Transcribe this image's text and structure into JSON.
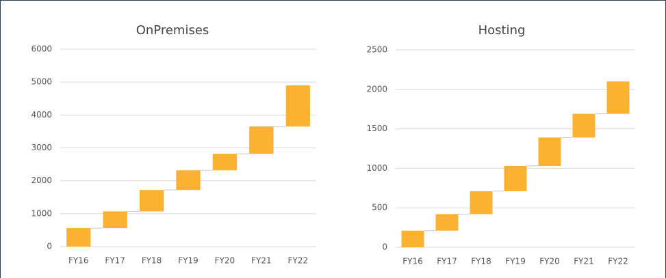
{
  "chart_data": [
    {
      "type": "waterfall",
      "title": "OnPremises",
      "categories": [
        "FY16",
        "FY17",
        "FY18",
        "FY19",
        "FY20",
        "FY21",
        "FY22"
      ],
      "values": [
        560,
        510,
        650,
        600,
        500,
        830,
        1250
      ],
      "color": "#fcb131",
      "ylim": [
        0,
        6000
      ],
      "yticks": [
        0,
        1000,
        2000,
        3000,
        4000,
        5000,
        6000
      ],
      "grid": true
    },
    {
      "type": "waterfall",
      "title": "Hosting",
      "categories": [
        "FY16",
        "FY17",
        "FY18",
        "FY19",
        "FY20",
        "FY21",
        "FY22"
      ],
      "values": [
        210,
        210,
        290,
        320,
        360,
        300,
        410
      ],
      "color": "#fcb131",
      "ylim": [
        0,
        2500
      ],
      "yticks": [
        0,
        500,
        1000,
        1500,
        2000,
        2500
      ],
      "grid": true
    }
  ]
}
